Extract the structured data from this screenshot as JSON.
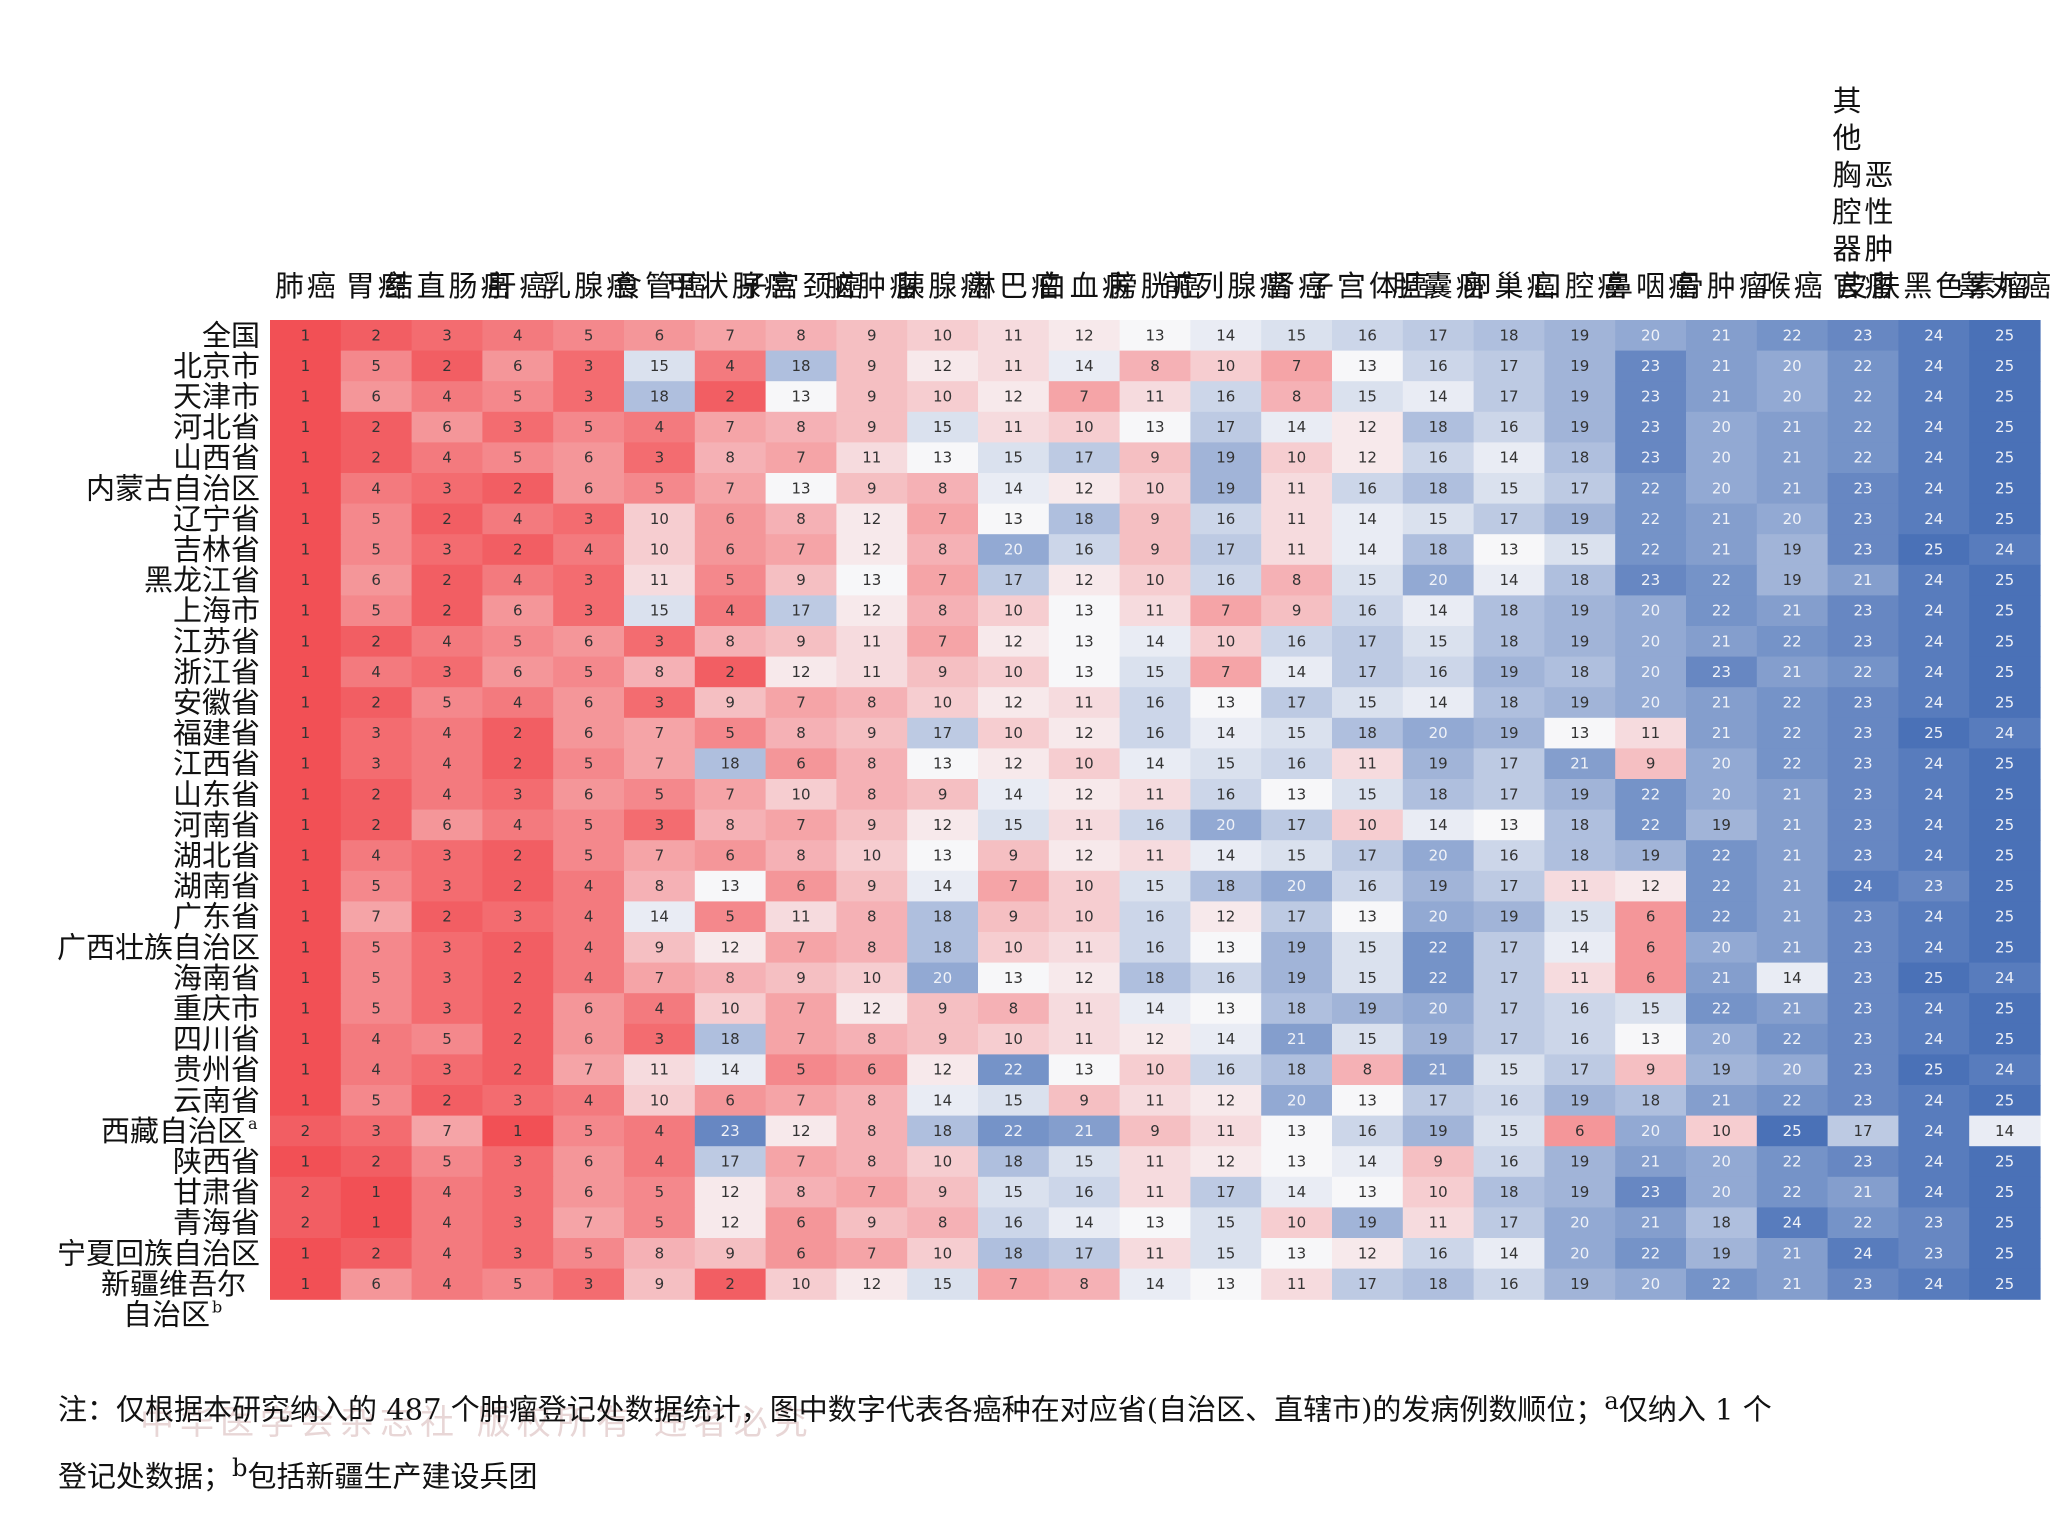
{
  "chart_data": {
    "type": "heatmap",
    "columns": [
      "肺癌",
      "胃癌",
      "结直肠癌",
      "肝癌",
      "乳腺癌",
      "食管癌",
      "甲状腺癌",
      "子宫颈癌",
      "脑肿瘤",
      "胰腺癌",
      "淋巴瘤",
      "白血病",
      "膀胱癌",
      "前列腺癌",
      "肾癌",
      "子宫体癌",
      "胆囊癌",
      "卵巢癌",
      "口腔癌",
      "鼻咽癌",
      "骨肿瘤",
      "喉癌",
      "其他胸腔器官恶性肿瘤",
      "皮肤黑色素瘤",
      "睾丸癌"
    ],
    "column_headers": [
      [
        "肺",
        "癌"
      ],
      [
        "胃",
        "癌"
      ],
      [
        "结",
        "直",
        "肠",
        "癌"
      ],
      [
        "肝",
        "癌"
      ],
      [
        "乳",
        "腺",
        "癌"
      ],
      [
        "食",
        "管",
        "癌"
      ],
      [
        "甲",
        "状",
        "腺",
        "癌"
      ],
      [
        "子",
        "宫",
        "颈",
        "癌"
      ],
      [
        "脑",
        "肿",
        "瘤"
      ],
      [
        "胰",
        "腺",
        "癌"
      ],
      [
        "淋",
        "巴",
        "瘤"
      ],
      [
        "白",
        "血",
        "病"
      ],
      [
        "膀",
        "胱",
        "癌"
      ],
      [
        "前",
        "列",
        "腺",
        "癌"
      ],
      [
        "肾",
        "癌"
      ],
      [
        "子",
        "宫",
        "体",
        "癌"
      ],
      [
        "胆",
        "囊",
        "癌"
      ],
      [
        "卵",
        "巢",
        "癌"
      ],
      [
        "口",
        "腔",
        "癌"
      ],
      [
        "鼻",
        "咽",
        "癌"
      ],
      [
        "骨",
        "肿",
        "瘤"
      ],
      [
        "喉",
        "癌"
      ],
      [
        "其他胸腔器官",
        "恶性肿瘤"
      ],
      [
        "皮",
        "肤",
        "黑",
        "色",
        "素",
        "瘤"
      ],
      [
        "睾",
        "丸",
        "癌"
      ]
    ],
    "rows": [
      {
        "label": "全国",
        "sup": "",
        "values": [
          1,
          2,
          3,
          4,
          5,
          6,
          7,
          8,
          9,
          10,
          11,
          12,
          13,
          14,
          15,
          16,
          17,
          18,
          19,
          20,
          21,
          22,
          23,
          24,
          25
        ]
      },
      {
        "label": "北京市",
        "sup": "",
        "values": [
          1,
          5,
          2,
          6,
          3,
          15,
          4,
          18,
          9,
          12,
          11,
          14,
          8,
          10,
          7,
          13,
          16,
          17,
          19,
          23,
          21,
          20,
          22,
          24,
          25
        ]
      },
      {
        "label": "天津市",
        "sup": "",
        "values": [
          1,
          6,
          4,
          5,
          3,
          18,
          2,
          13,
          9,
          10,
          12,
          7,
          11,
          16,
          8,
          15,
          14,
          17,
          19,
          23,
          21,
          20,
          22,
          24,
          25
        ]
      },
      {
        "label": "河北省",
        "sup": "",
        "values": [
          1,
          2,
          6,
          3,
          5,
          4,
          7,
          8,
          9,
          15,
          11,
          10,
          13,
          17,
          14,
          12,
          18,
          16,
          19,
          23,
          20,
          21,
          22,
          24,
          25
        ]
      },
      {
        "label": "山西省",
        "sup": "",
        "values": [
          1,
          2,
          4,
          5,
          6,
          3,
          8,
          7,
          11,
          13,
          15,
          17,
          9,
          19,
          10,
          12,
          16,
          14,
          18,
          23,
          20,
          21,
          22,
          24,
          25
        ]
      },
      {
        "label": "内蒙古自治区",
        "sup": "",
        "values": [
          1,
          4,
          3,
          2,
          6,
          5,
          7,
          13,
          9,
          8,
          14,
          12,
          10,
          19,
          11,
          16,
          18,
          15,
          17,
          22,
          20,
          21,
          23,
          24,
          25
        ]
      },
      {
        "label": "辽宁省",
        "sup": "",
        "values": [
          1,
          5,
          2,
          4,
          3,
          10,
          6,
          8,
          12,
          7,
          13,
          18,
          9,
          16,
          11,
          14,
          15,
          17,
          19,
          22,
          21,
          20,
          23,
          24,
          25
        ]
      },
      {
        "label": "吉林省",
        "sup": "",
        "values": [
          1,
          5,
          3,
          2,
          4,
          10,
          6,
          7,
          12,
          8,
          20,
          16,
          9,
          17,
          11,
          14,
          18,
          13,
          15,
          22,
          21,
          19,
          23,
          25,
          24
        ]
      },
      {
        "label": "黑龙江省",
        "sup": "",
        "values": [
          1,
          6,
          2,
          4,
          3,
          11,
          5,
          9,
          13,
          7,
          17,
          12,
          10,
          16,
          8,
          15,
          20,
          14,
          18,
          23,
          22,
          19,
          21,
          24,
          25
        ]
      },
      {
        "label": "上海市",
        "sup": "",
        "values": [
          1,
          5,
          2,
          6,
          3,
          15,
          4,
          17,
          12,
          8,
          10,
          13,
          11,
          7,
          9,
          16,
          14,
          18,
          19,
          20,
          22,
          21,
          23,
          24,
          25
        ]
      },
      {
        "label": "江苏省",
        "sup": "",
        "values": [
          1,
          2,
          4,
          5,
          6,
          3,
          8,
          9,
          11,
          7,
          12,
          13,
          14,
          10,
          16,
          17,
          15,
          18,
          19,
          20,
          21,
          22,
          23,
          24,
          25
        ]
      },
      {
        "label": "浙江省",
        "sup": "",
        "values": [
          1,
          4,
          3,
          6,
          5,
          8,
          2,
          12,
          11,
          9,
          10,
          13,
          15,
          7,
          14,
          17,
          16,
          19,
          18,
          20,
          23,
          21,
          22,
          24,
          25
        ]
      },
      {
        "label": "安徽省",
        "sup": "",
        "values": [
          1,
          2,
          5,
          4,
          6,
          3,
          9,
          7,
          8,
          10,
          12,
          11,
          16,
          13,
          17,
          15,
          14,
          18,
          19,
          20,
          21,
          22,
          23,
          24,
          25
        ]
      },
      {
        "label": "福建省",
        "sup": "",
        "values": [
          1,
          3,
          4,
          2,
          6,
          7,
          5,
          8,
          9,
          17,
          10,
          12,
          16,
          14,
          15,
          18,
          20,
          19,
          13,
          11,
          21,
          22,
          23,
          25,
          24
        ]
      },
      {
        "label": "江西省",
        "sup": "",
        "values": [
          1,
          3,
          4,
          2,
          5,
          7,
          18,
          6,
          8,
          13,
          12,
          10,
          14,
          15,
          16,
          11,
          19,
          17,
          21,
          9,
          20,
          22,
          23,
          24,
          25
        ]
      },
      {
        "label": "山东省",
        "sup": "",
        "values": [
          1,
          2,
          4,
          3,
          6,
          5,
          7,
          10,
          8,
          9,
          14,
          12,
          11,
          16,
          13,
          15,
          18,
          17,
          19,
          22,
          20,
          21,
          23,
          24,
          25
        ]
      },
      {
        "label": "河南省",
        "sup": "",
        "values": [
          1,
          2,
          6,
          4,
          5,
          3,
          8,
          7,
          9,
          12,
          15,
          11,
          16,
          20,
          17,
          10,
          14,
          13,
          18,
          22,
          19,
          21,
          23,
          24,
          25
        ]
      },
      {
        "label": "湖北省",
        "sup": "",
        "values": [
          1,
          4,
          3,
          2,
          5,
          7,
          6,
          8,
          10,
          13,
          9,
          12,
          11,
          14,
          15,
          17,
          20,
          16,
          18,
          19,
          22,
          21,
          23,
          24,
          25
        ]
      },
      {
        "label": "湖南省",
        "sup": "",
        "values": [
          1,
          5,
          3,
          2,
          4,
          8,
          13,
          6,
          9,
          14,
          7,
          10,
          15,
          18,
          20,
          16,
          19,
          17,
          11,
          12,
          22,
          21,
          24,
          23,
          25
        ]
      },
      {
        "label": "广东省",
        "sup": "",
        "values": [
          1,
          7,
          2,
          3,
          4,
          14,
          5,
          11,
          8,
          18,
          9,
          10,
          16,
          12,
          17,
          13,
          20,
          19,
          15,
          6,
          22,
          21,
          23,
          24,
          25
        ]
      },
      {
        "label": "广西壮族自治区",
        "sup": "",
        "values": [
          1,
          5,
          3,
          2,
          4,
          9,
          12,
          7,
          8,
          18,
          10,
          11,
          16,
          13,
          19,
          15,
          22,
          17,
          14,
          6,
          20,
          21,
          23,
          24,
          25
        ]
      },
      {
        "label": "海南省",
        "sup": "",
        "values": [
          1,
          5,
          3,
          2,
          4,
          7,
          8,
          9,
          10,
          20,
          13,
          12,
          18,
          16,
          19,
          15,
          22,
          17,
          11,
          6,
          21,
          14,
          23,
          25,
          24
        ]
      },
      {
        "label": "重庆市",
        "sup": "",
        "values": [
          1,
          5,
          3,
          2,
          6,
          4,
          10,
          7,
          12,
          9,
          8,
          11,
          14,
          13,
          18,
          19,
          20,
          17,
          16,
          15,
          22,
          21,
          23,
          24,
          25
        ]
      },
      {
        "label": "四川省",
        "sup": "",
        "values": [
          1,
          4,
          5,
          2,
          6,
          3,
          18,
          7,
          8,
          9,
          10,
          11,
          12,
          14,
          21,
          15,
          19,
          17,
          16,
          13,
          20,
          22,
          23,
          24,
          25
        ]
      },
      {
        "label": "贵州省",
        "sup": "",
        "values": [
          1,
          4,
          3,
          2,
          7,
          11,
          14,
          5,
          6,
          12,
          22,
          13,
          10,
          16,
          18,
          8,
          21,
          15,
          17,
          9,
          19,
          20,
          23,
          25,
          24
        ]
      },
      {
        "label": "云南省",
        "sup": "",
        "values": [
          1,
          5,
          2,
          3,
          4,
          10,
          6,
          7,
          8,
          14,
          15,
          9,
          11,
          12,
          20,
          13,
          17,
          16,
          19,
          18,
          21,
          22,
          23,
          24,
          25
        ]
      },
      {
        "label": "西藏自治区",
        "sup": "a",
        "values": [
          2,
          3,
          7,
          1,
          5,
          4,
          23,
          12,
          8,
          18,
          22,
          21,
          9,
          11,
          13,
          16,
          19,
          15,
          6,
          20,
          10,
          25,
          17,
          24,
          14
        ]
      },
      {
        "label": "陕西省",
        "sup": "",
        "values": [
          1,
          2,
          5,
          3,
          6,
          4,
          17,
          7,
          8,
          10,
          18,
          15,
          11,
          12,
          13,
          14,
          9,
          16,
          19,
          21,
          20,
          22,
          23,
          24,
          25
        ]
      },
      {
        "label": "甘肃省",
        "sup": "",
        "values": [
          2,
          1,
          4,
          3,
          6,
          5,
          12,
          8,
          7,
          9,
          15,
          16,
          11,
          17,
          14,
          13,
          10,
          18,
          19,
          23,
          20,
          22,
          21,
          24,
          25
        ]
      },
      {
        "label": "青海省",
        "sup": "",
        "values": [
          2,
          1,
          4,
          3,
          7,
          5,
          12,
          6,
          9,
          8,
          16,
          14,
          13,
          15,
          10,
          19,
          11,
          17,
          20,
          21,
          18,
          24,
          22,
          23,
          25
        ]
      },
      {
        "label": "宁夏回族自治区",
        "sup": "",
        "values": [
          1,
          2,
          4,
          3,
          5,
          8,
          9,
          6,
          7,
          10,
          18,
          17,
          11,
          15,
          13,
          12,
          16,
          14,
          20,
          22,
          19,
          21,
          24,
          23,
          25
        ]
      },
      {
        "label": "新疆维吾尔自治区",
        "sup": "b",
        "label_lines": [
          "新疆维吾尔",
          "自治区"
        ],
        "values": [
          1,
          6,
          4,
          5,
          3,
          9,
          2,
          10,
          12,
          15,
          7,
          8,
          14,
          13,
          11,
          17,
          18,
          16,
          19,
          20,
          22,
          21,
          23,
          24,
          25
        ]
      }
    ],
    "colors": {
      "low": "#f25055",
      "mid": "#f7f7f9",
      "high": "#4a71b7"
    },
    "value_range": [
      1,
      25
    ]
  },
  "note": {
    "line1": "注：仅根据本研究纳入的 487 个肿瘤登记处数据统计，图中数字代表各癌种在对应省(自治区、直辖市)的发病例数顺位；",
    "sup_a": "a",
    "line1_tail": "仅纳入 1 个",
    "line2_prefix": "登记处数据；",
    "sup_b": "b",
    "line2_tail": "包括新疆生产建设兵团"
  },
  "watermark": "中华医学会杂志社  版权所有  违者必究"
}
